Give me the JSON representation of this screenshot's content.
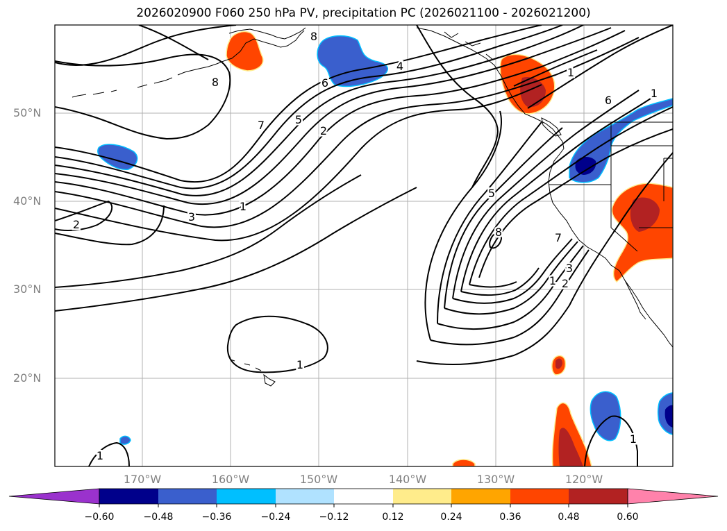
{
  "title": "2026020900 F060 250 hPa PV, precipitation PC (2026021100 - 2026021200)",
  "lat_labels": [
    "50°N",
    "40°N",
    "30°N",
    "20°N"
  ],
  "lon_labels": [
    "170°W",
    "160°W",
    "150°W",
    "140°W",
    "130°W",
    "120°W"
  ],
  "colorbar": {
    "ticks": [
      "−0.60",
      "−0.48",
      "−0.36",
      "−0.24",
      "−0.12",
      "0.12",
      "0.24",
      "0.36",
      "0.48",
      "0.60"
    ],
    "colors": [
      "#9a32cd",
      "#00008b",
      "#3a5fcd",
      "#00bfff",
      "#b0e2ff",
      "#ffffff",
      "#ffec8b",
      "#ffa500",
      "#ff4500",
      "#b22222",
      "#ff82ab"
    ]
  },
  "contour_labels": [
    "8",
    "4",
    "6",
    "7",
    "5",
    "2",
    "2",
    "3",
    "1",
    "1",
    "1",
    "1",
    "5",
    "8",
    "7",
    "3",
    "2",
    "1",
    "6",
    "1",
    "8",
    "1"
  ],
  "colors": {
    "contour": "#000000",
    "coast": "#000000",
    "grid": "#b0b0b0"
  }
}
